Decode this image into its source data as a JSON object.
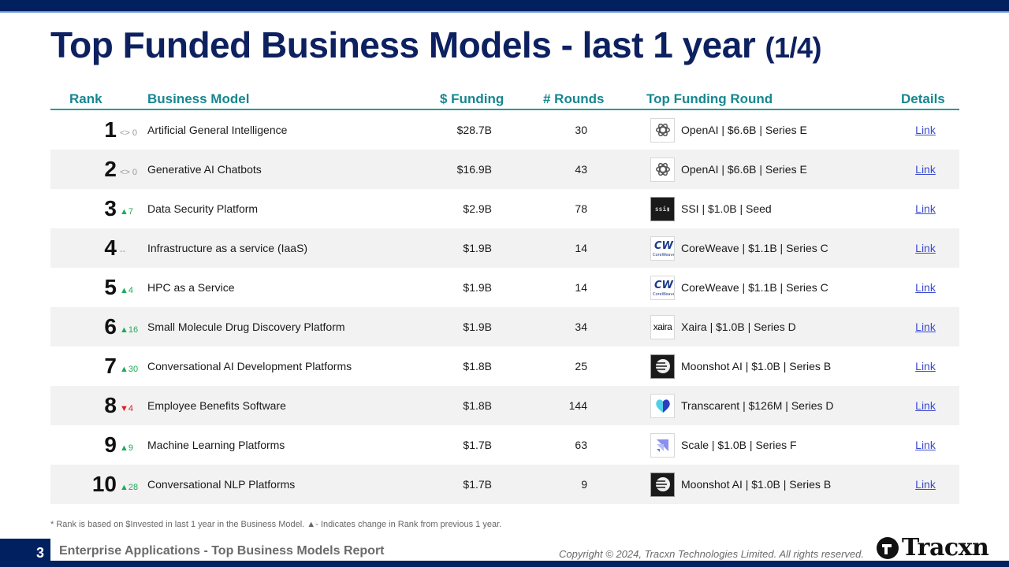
{
  "slide": {
    "title": "Top Funded Business Models - last 1 year",
    "title_suffix": "(1/4)",
    "page_number": "3",
    "report_name": "Enterprise Applications - Top Business Models Report",
    "copyright": "Copyright © 2024, Tracxn Technologies Limited. All rights reserved.",
    "brand": "Tracxn",
    "footnote": "*  Rank is based on $Invested in last 1 year in the Business Model.  ▲- Indicates change in Rank from previous 1 year."
  },
  "colors": {
    "navy": "#002060",
    "title": "#0d2060",
    "header_teal": "#16878f",
    "up_green": "#1faa5a",
    "down_red": "#e02020",
    "link_blue": "#3b4bd0"
  },
  "table": {
    "headers": {
      "rank": "Rank",
      "business_model": "Business Model",
      "funding": "$ Funding",
      "rounds": "# Rounds",
      "top_round": "Top Funding Round",
      "details": "Details"
    },
    "rows": [
      {
        "rank": "1",
        "change": "<> 0",
        "direction": "flat",
        "model": "Artificial General Intelligence",
        "funding": "$28.7B",
        "rounds": "30",
        "top_round": "OpenAI | $6.6B | Series E",
        "logo": "openai-logo",
        "details": "Link"
      },
      {
        "rank": "2",
        "change": "<> 0",
        "direction": "flat",
        "model": "Generative AI Chatbots",
        "funding": "$16.9B",
        "rounds": "43",
        "top_round": "OpenAI | $6.6B | Series E",
        "logo": "openai-logo",
        "details": "Link"
      },
      {
        "rank": "3",
        "change": "▲7",
        "direction": "up",
        "model": "Data Security Platform",
        "funding": "$2.9B",
        "rounds": "78",
        "top_round": "SSI | $1.0B | Seed",
        "logo": "ssi-logo",
        "details": "Link"
      },
      {
        "rank": "4",
        "change": "--",
        "direction": "flat",
        "model": "Infrastructure as a service (IaaS)",
        "funding": "$1.9B",
        "rounds": "14",
        "top_round": "CoreWeave | $1.1B | Series C",
        "logo": "coreweave-logo",
        "details": "Link"
      },
      {
        "rank": "5",
        "change": "▲4",
        "direction": "up",
        "model": "HPC as a Service",
        "funding": "$1.9B",
        "rounds": "14",
        "top_round": "CoreWeave | $1.1B | Series C",
        "logo": "coreweave-logo",
        "details": "Link"
      },
      {
        "rank": "6",
        "change": "▲16",
        "direction": "up",
        "model": "Small Molecule Drug Discovery Platform",
        "funding": "$1.9B",
        "rounds": "34",
        "top_round": "Xaira | $1.0B | Series D",
        "logo": "xaira-logo",
        "details": "Link"
      },
      {
        "rank": "7",
        "change": "▲30",
        "direction": "up",
        "model": "Conversational AI Development Platforms",
        "funding": "$1.8B",
        "rounds": "25",
        "top_round": "Moonshot AI | $1.0B | Series B",
        "logo": "moonshot-logo",
        "details": "Link"
      },
      {
        "rank": "8",
        "change": "▼4",
        "direction": "down",
        "model": "Employee Benefits Software",
        "funding": "$1.8B",
        "rounds": "144",
        "top_round": "Transcarent | $126M | Series D",
        "logo": "transcarent-logo",
        "details": "Link"
      },
      {
        "rank": "9",
        "change": "▲9",
        "direction": "up",
        "model": "Machine Learning Platforms",
        "funding": "$1.7B",
        "rounds": "63",
        "top_round": "Scale | $1.0B | Series F",
        "logo": "scale-logo",
        "details": "Link"
      },
      {
        "rank": "10",
        "change": "▲28",
        "direction": "up",
        "model": "Conversational NLP Platforms",
        "funding": "$1.7B",
        "rounds": "9",
        "top_round": "Moonshot AI | $1.0B | Series B",
        "logo": "moonshot-logo",
        "details": "Link"
      }
    ]
  }
}
